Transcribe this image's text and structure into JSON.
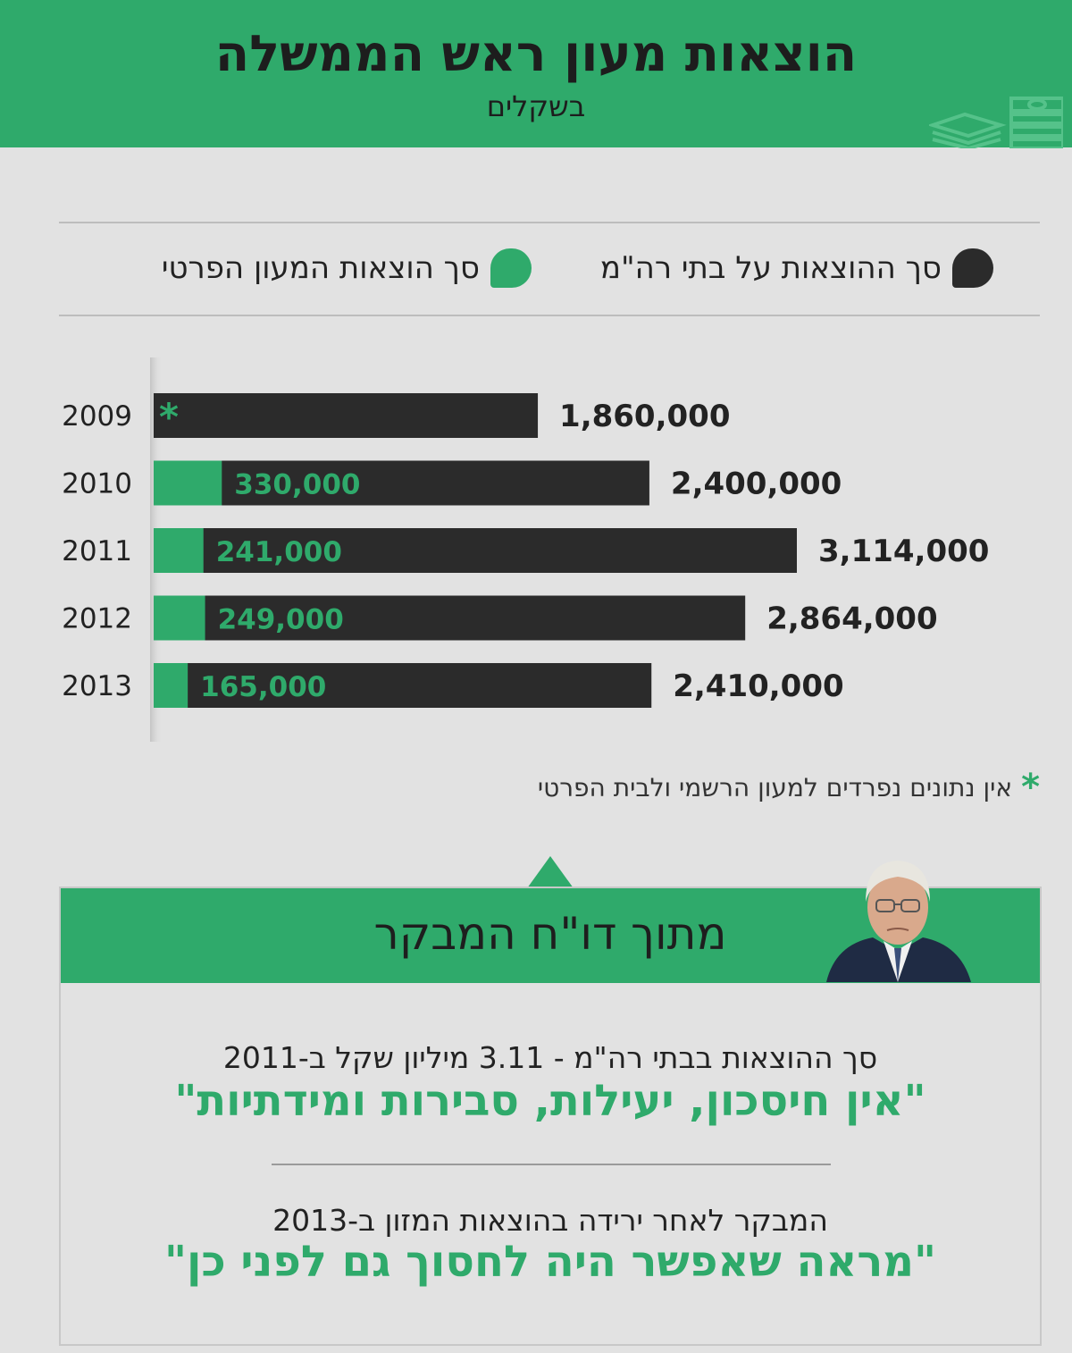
{
  "header": {
    "title": "הוצאות מעון ראש הממשלה",
    "subtitle": "בשקלים"
  },
  "legend": {
    "dark": {
      "label": "סך ההוצאות על בתי רה\"מ",
      "color": "#2b2b2b"
    },
    "green": {
      "label": "סך הוצאות המעון הפרטי",
      "color": "#2faa6b"
    }
  },
  "chart_data": {
    "type": "bar",
    "orientation": "horizontal",
    "categories": [
      "2009",
      "2010",
      "2011",
      "2012",
      "2013"
    ],
    "series": [
      {
        "name": "סך ההוצאות על בתי רה\"מ",
        "values": [
          1860000,
          2400000,
          3114000,
          2864000,
          2410000
        ],
        "labels": [
          "1,860,000",
          "2,400,000",
          "3,114,000",
          "2,864,000",
          "2,410,000"
        ],
        "color": "#2b2b2b"
      },
      {
        "name": "סך הוצאות המעון הפרטי",
        "values": [
          null,
          330000,
          241000,
          249000,
          165000
        ],
        "labels": [
          "*",
          "330,000",
          "241,000",
          "249,000",
          "165,000"
        ],
        "color": "#2faa6b"
      }
    ],
    "xlim": [
      0,
      3114000
    ],
    "grid": false
  },
  "footnote": {
    "symbol": "*",
    "text": "אין נתונים נפרדים למעון הרשמי ולבית הפרטי"
  },
  "panel": {
    "title": "מתוך דו\"ח המבקר",
    "quote1_sub": "סך ההוצאות בבתי רה\"מ - 3.11 מיליון שקל ב-2011",
    "quote1_main": "\"אין חיסכון, יעילות, סבירות ומידתיות\"",
    "quote2_sub": "המבקר לאחר ירידה בהוצאות המזון ב-2013",
    "quote2_main": "\"מראה שאפשר היה לחסוך גם לפני כן\""
  }
}
